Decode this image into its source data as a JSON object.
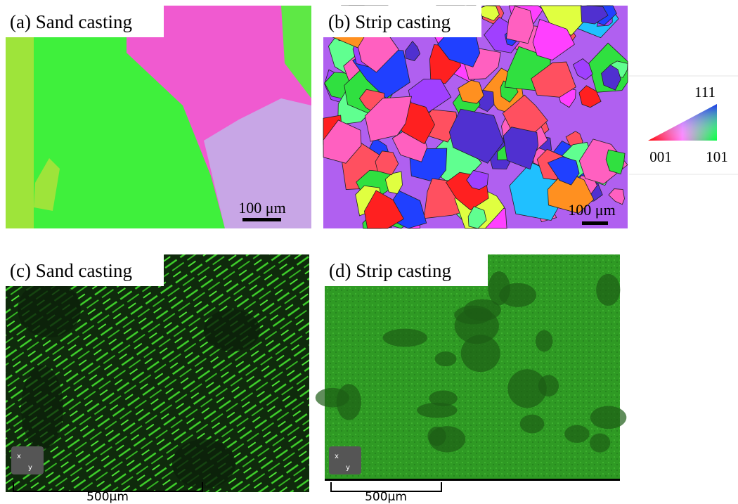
{
  "panels": [
    {
      "label": "(a) Sand casting",
      "scale_bar": "100 μm"
    },
    {
      "label": "(b) Strip casting",
      "scale_bar": "100 μm"
    },
    {
      "label": "(c) Sand casting",
      "scale_bar": "500μm"
    },
    {
      "label": "(d) Strip casting",
      "scale_bar": "500μm"
    }
  ],
  "legend": {
    "top": "111",
    "left": "001",
    "right": "101"
  },
  "axis_icon": {
    "x": "x",
    "y": "y"
  }
}
